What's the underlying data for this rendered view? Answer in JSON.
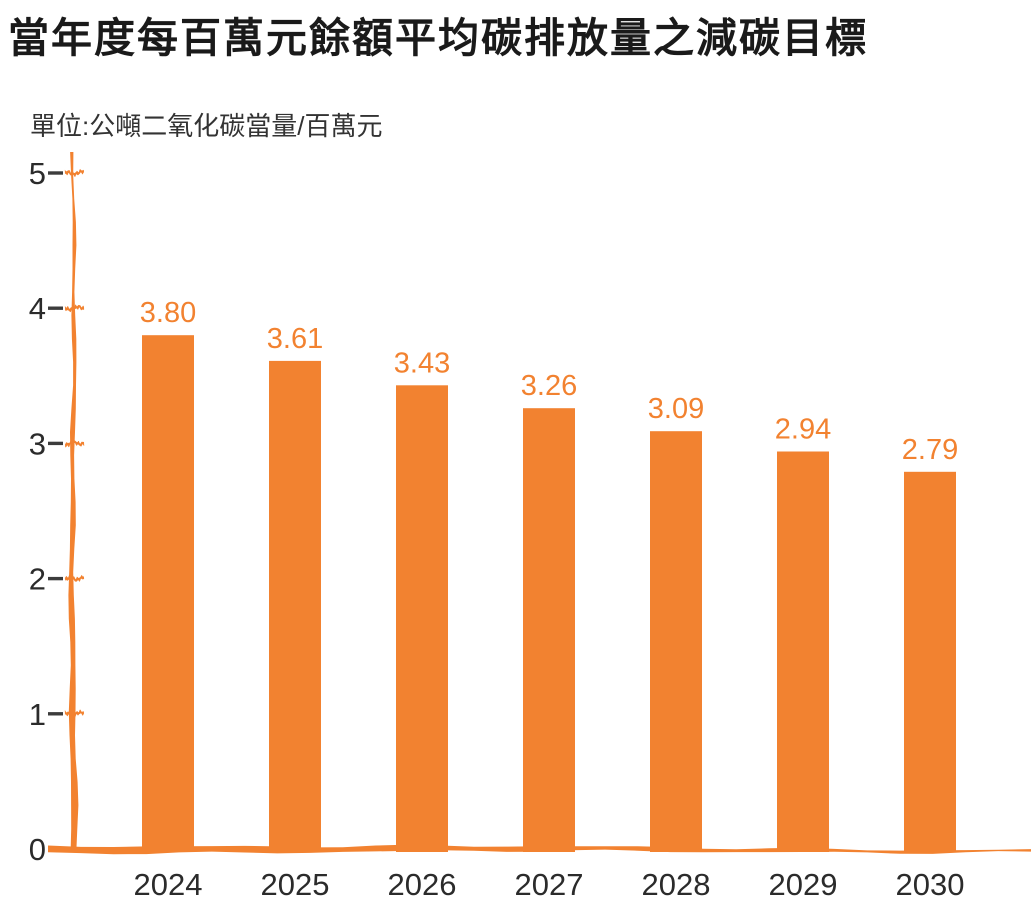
{
  "title": "當年度每百萬元餘額平均碳排放量之減碳目標",
  "unit_label": "單位:公噸二氧化碳當量/百萬元",
  "colors": {
    "bar": "#F28230",
    "value_label": "#F28230",
    "axis": "#F28230",
    "axis_tick_dash": "#3c3c3c",
    "tick_label": "#2b2b2b",
    "title_text": "#1a1a1a",
    "unit_text": "#333333"
  },
  "chart_data": {
    "type": "bar",
    "title": "當年度每百萬元餘額平均碳排放量之減碳目標",
    "unit": "公噸二氧化碳當量/百萬元",
    "categories": [
      "2024",
      "2025",
      "2026",
      "2027",
      "2028",
      "2029",
      "2030"
    ],
    "values": [
      3.8,
      3.61,
      3.43,
      3.26,
      3.09,
      2.94,
      2.79
    ],
    "value_labels": [
      "3.80",
      "3.61",
      "3.43",
      "3.26",
      "3.09",
      "2.94",
      "2.79"
    ],
    "xlabel": "",
    "ylabel": "",
    "ylim": [
      0,
      5
    ],
    "yticks": [
      0,
      1,
      2,
      3,
      4,
      5
    ],
    "grid": false,
    "legend": null,
    "bar_color": "#F28230",
    "data_labels_shown": true
  }
}
